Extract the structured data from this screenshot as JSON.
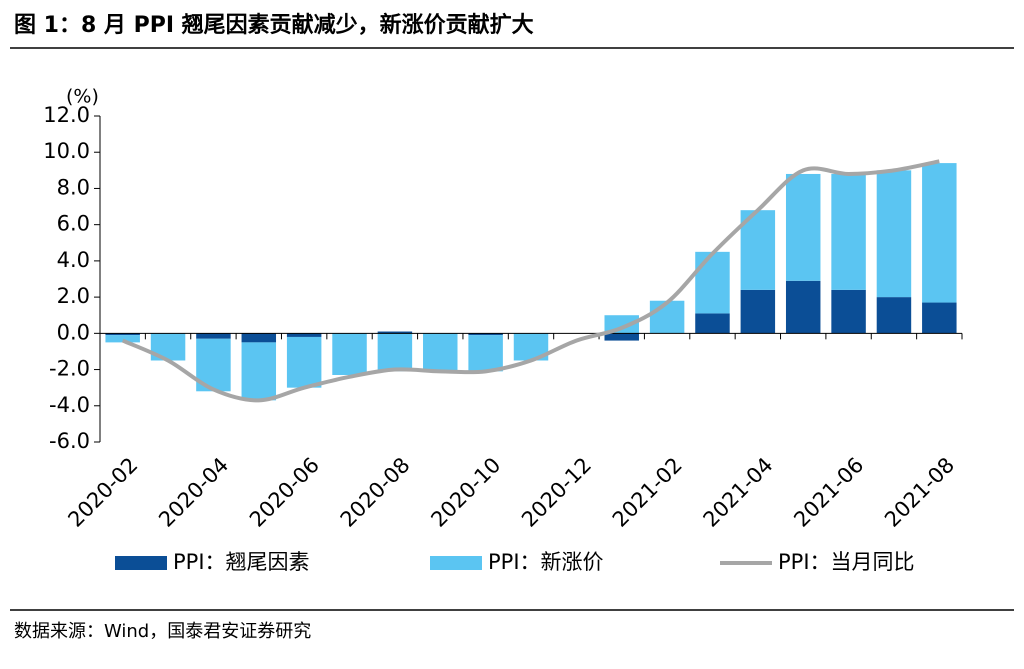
{
  "chart_data": {
    "type": "bar",
    "stacked": true,
    "title": "图 1：8 月 PPI 翘尾因素贡献减少，新涨价贡献扩大",
    "y_label": "(%)",
    "source": "数据来源：Wind，国泰君安证券研究",
    "categories": [
      "2020-02",
      null,
      "2020-04",
      null,
      "2020-06",
      null,
      "2020-08",
      null,
      "2020-10",
      null,
      "2020-12",
      null,
      "2021-02",
      null,
      "2021-04",
      null,
      "2021-06",
      null,
      "2021-08"
    ],
    "series": [
      {
        "name": "PPI：翘尾因素",
        "type": "bar",
        "color": "#0b4e96",
        "values": [
          -0.1,
          0,
          -0.3,
          -0.5,
          -0.2,
          0,
          0.1,
          0,
          -0.1,
          0,
          0,
          -0.4,
          0,
          1.1,
          2.4,
          2.9,
          2.4,
          2.0,
          1.7
        ]
      },
      {
        "name": "PPI：新涨价",
        "type": "bar",
        "color": "#5bc5f2",
        "values": [
          -0.4,
          -1.5,
          -2.9,
          -3.2,
          -2.8,
          -2.3,
          -2.1,
          -2.1,
          -2.0,
          -1.5,
          0,
          1.0,
          1.8,
          3.4,
          4.4,
          5.9,
          6.4,
          7.0,
          7.7
        ]
      },
      {
        "name": "PPI：当月同比",
        "type": "line",
        "color": "#a6a6a6",
        "values": [
          -0.4,
          -1.5,
          -3.1,
          -3.7,
          -3.0,
          -2.4,
          -2.0,
          -2.1,
          -2.1,
          -1.5,
          -0.4,
          0.3,
          1.7,
          4.4,
          6.8,
          9.0,
          8.8,
          9.0,
          9.5
        ]
      }
    ],
    "ylim": [
      -6,
      12
    ],
    "yticks": [
      {
        "value": 12,
        "label": "12.0"
      },
      {
        "value": 10,
        "label": "10.0"
      },
      {
        "value": 8,
        "label": "8.0"
      },
      {
        "value": 6,
        "label": "6.0"
      },
      {
        "value": 4,
        "label": "4.0"
      },
      {
        "value": 2,
        "label": "2.0"
      },
      {
        "value": 0,
        "label": "0.0"
      },
      {
        "value": -2,
        "label": "-2.0"
      },
      {
        "value": -4,
        "label": "-4.0"
      },
      {
        "value": -6,
        "label": "-6.0"
      }
    ]
  }
}
